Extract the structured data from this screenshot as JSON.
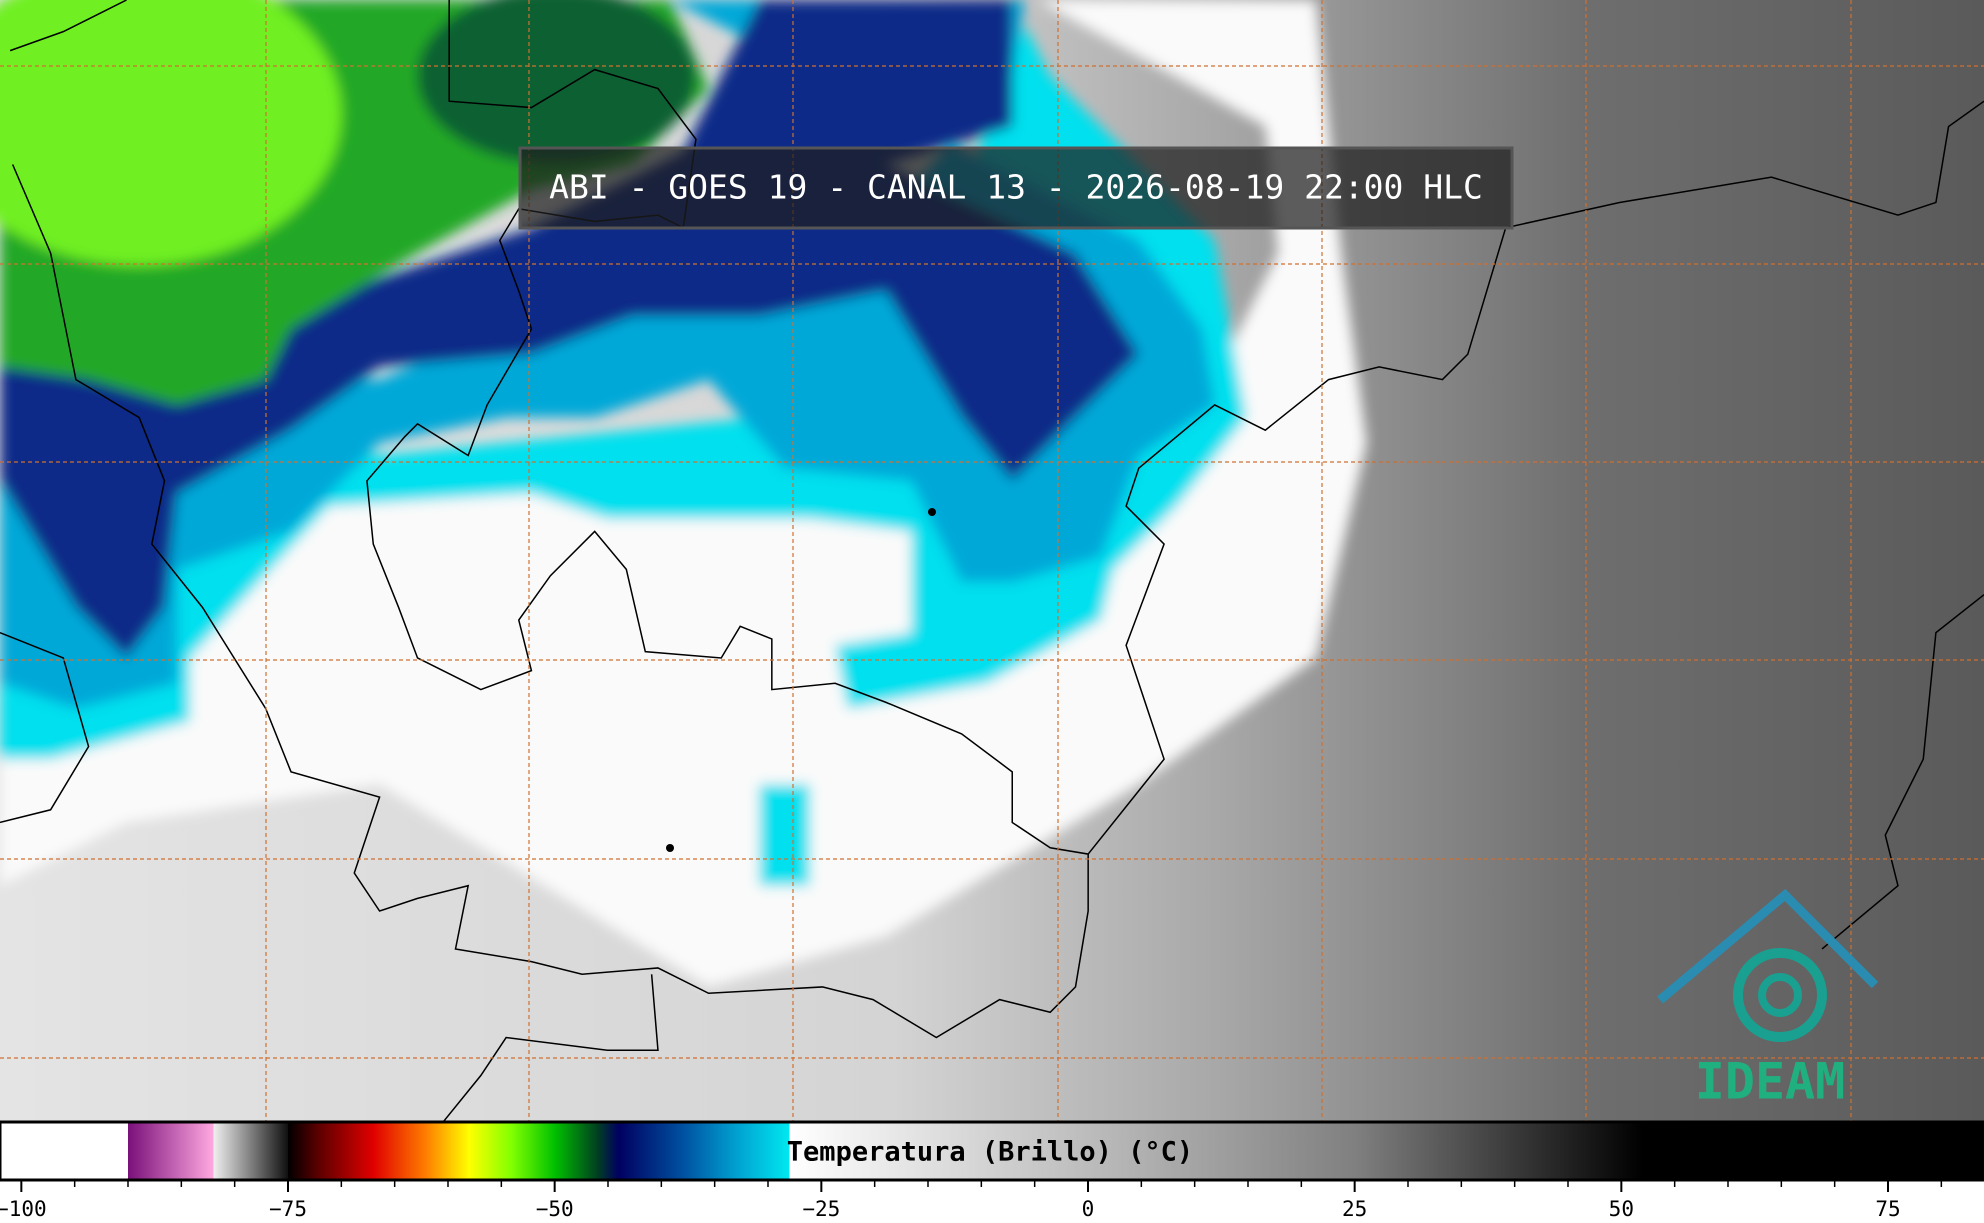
{
  "title": "ABI - GOES 19 - CANAL 13 - 2026-08-19 22:00 HLC",
  "logo": "IDEAM",
  "colorbar": {
    "label": "Temperatura (Brillo) (°C)",
    "lim": [
      -102,
      84
    ],
    "ticks": [
      {
        "value": -100,
        "label": "−100"
      },
      {
        "value": -75,
        "label": "−75"
      },
      {
        "value": -50,
        "label": "−50"
      },
      {
        "value": -25,
        "label": "−25"
      },
      0,
      25,
      50,
      75
    ],
    "minor_ticks": [
      -95,
      -90,
      -85,
      -80,
      -70,
      -65,
      -60,
      -55,
      -45,
      -40,
      -35,
      -30,
      -20,
      -15,
      -10,
      -5,
      5,
      10,
      15,
      20,
      30,
      35,
      40,
      45,
      55,
      60,
      65,
      70,
      80
    ],
    "colormap": [
      [
        -102,
        "#ffffff"
      ],
      [
        -90,
        "#ffffff"
      ],
      [
        -90,
        "#7a107a"
      ],
      [
        -82,
        "#ffa8e0"
      ],
      [
        -82,
        "#f0f0f0"
      ],
      [
        -75,
        "#101010"
      ],
      [
        -75,
        "#000000"
      ],
      [
        -72,
        "#600000"
      ],
      [
        -67,
        "#e00000"
      ],
      [
        -62,
        "#ff8000"
      ],
      [
        -58,
        "#ffff00"
      ],
      [
        -54,
        "#80ff00"
      ],
      [
        -50,
        "#00c000"
      ],
      [
        -46,
        "#004020"
      ],
      [
        -44,
        "#000060"
      ],
      [
        -38,
        "#0050a0"
      ],
      [
        -33,
        "#00a0d0"
      ],
      [
        -28,
        "#00e8f0"
      ],
      [
        -28,
        "#ffffff"
      ],
      [
        -15,
        "#e0e0e0"
      ],
      [
        25,
        "#808080"
      ],
      [
        52,
        "#000000"
      ],
      [
        84,
        "#000000"
      ]
    ]
  }
}
